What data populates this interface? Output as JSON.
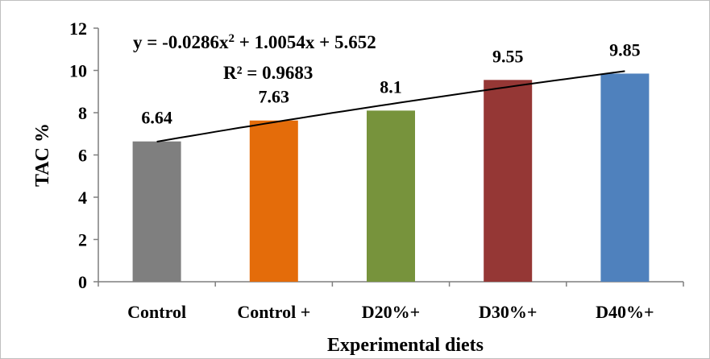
{
  "chart_data": {
    "type": "bar",
    "categories": [
      "Control",
      "Control +",
      "D20%+",
      "D30%+",
      "D40%+"
    ],
    "values": [
      6.64,
      7.63,
      8.1,
      9.55,
      9.85
    ],
    "data_labels": [
      "6.64",
      "7.63",
      "8.1",
      "9.55",
      "9.85"
    ],
    "colors": [
      "#7f7f7f",
      "#e46c0a",
      "#77933c",
      "#953735",
      "#4f81bd"
    ],
    "title": "",
    "xlabel": "Experimental diets",
    "ylabel": "TAC %",
    "ylim": [
      0,
      12
    ],
    "yticks": [
      "0",
      "2",
      "4",
      "6",
      "8",
      "10",
      "12"
    ],
    "grid": false,
    "legend": "none",
    "trendline": {
      "type": "polynomial",
      "order": 2,
      "coefficients": [
        -0.0286,
        1.0054,
        5.652
      ],
      "color": "#000000",
      "equation_text": {
        "prefix": "y = -0.0286x",
        "sup": "2",
        "suffix": " + 1.0054x + 5.652"
      },
      "r_squared_text": "R² = 0.9683"
    }
  }
}
